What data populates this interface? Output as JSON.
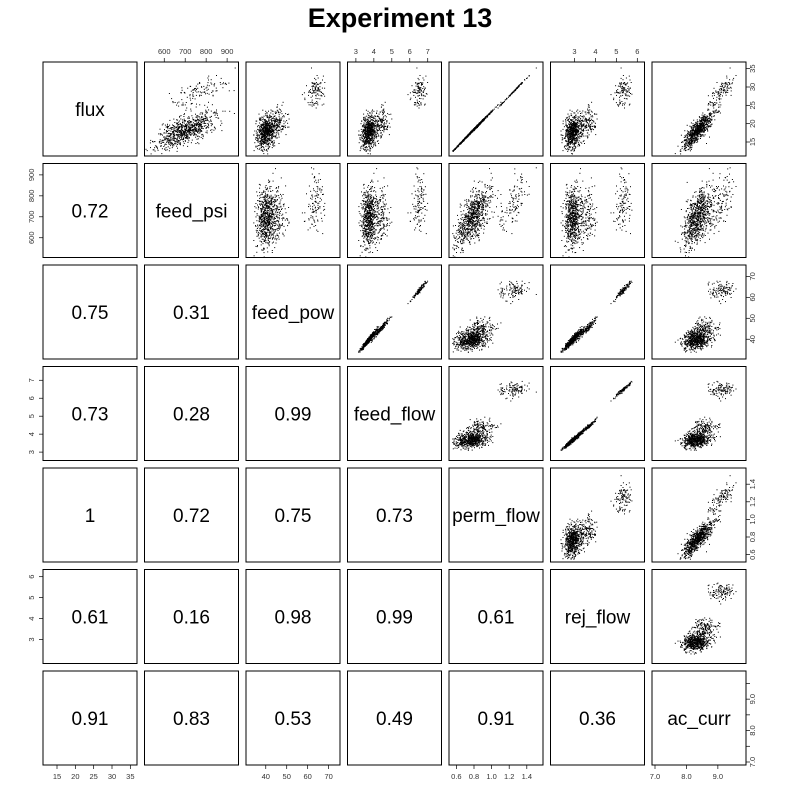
{
  "chart_data": {
    "type": "scatter",
    "title": "Experiment 13",
    "variables": [
      "flux",
      "feed_psi",
      "feed_pow",
      "feed_flow",
      "perm_flow",
      "rej_flow",
      "ac_curr"
    ],
    "ranges": {
      "flux": [
        12,
        36
      ],
      "feed_psi": [
        520,
        940
      ],
      "feed_pow": [
        32,
        74
      ],
      "feed_flow": [
        2.7,
        7.6
      ],
      "perm_flow": [
        0.55,
        1.55
      ],
      "rej_flow": [
        2.0,
        6.2
      ],
      "ac_curr": [
        7.0,
        9.8
      ]
    },
    "ticks": {
      "flux": [
        "15",
        "20",
        "25",
        "30",
        "35"
      ],
      "feed_psi": [
        "600",
        "700",
        "800",
        "900"
      ],
      "feed_pow": [
        "40",
        "50",
        "60",
        "70"
      ],
      "feed_flow": [
        "3",
        "4",
        "5",
        "6",
        "7"
      ],
      "perm_flow": [
        "0.6",
        "0.8",
        "1.0",
        "1.2",
        "1.4"
      ],
      "rej_flow": [
        "3",
        "4",
        "5",
        "6"
      ],
      "ac_curr": [
        "7.0",
        "8.0",
        "9.0"
      ]
    },
    "ticks_minor": {
      "ac_curr": [
        "7.5",
        "8.5",
        "9.5"
      ]
    },
    "correlations": [
      {
        "row": "feed_psi",
        "col": "flux",
        "value": "0.72"
      },
      {
        "row": "feed_pow",
        "col": "flux",
        "value": "0.75"
      },
      {
        "row": "feed_pow",
        "col": "feed_psi",
        "value": "0.31"
      },
      {
        "row": "feed_flow",
        "col": "flux",
        "value": "0.73"
      },
      {
        "row": "feed_flow",
        "col": "feed_psi",
        "value": "0.28"
      },
      {
        "row": "feed_flow",
        "col": "feed_pow",
        "value": "0.99"
      },
      {
        "row": "perm_flow",
        "col": "flux",
        "value": "1"
      },
      {
        "row": "perm_flow",
        "col": "feed_psi",
        "value": "0.72"
      },
      {
        "row": "perm_flow",
        "col": "feed_pow",
        "value": "0.75"
      },
      {
        "row": "perm_flow",
        "col": "feed_flow",
        "value": "0.73"
      },
      {
        "row": "rej_flow",
        "col": "flux",
        "value": "0.61"
      },
      {
        "row": "rej_flow",
        "col": "feed_psi",
        "value": "0.16"
      },
      {
        "row": "rej_flow",
        "col": "feed_pow",
        "value": "0.98"
      },
      {
        "row": "rej_flow",
        "col": "feed_flow",
        "value": "0.99"
      },
      {
        "row": "rej_flow",
        "col": "perm_flow",
        "value": "0.61"
      },
      {
        "row": "ac_curr",
        "col": "flux",
        "value": "0.91"
      },
      {
        "row": "ac_curr",
        "col": "feed_psi",
        "value": "0.83"
      },
      {
        "row": "ac_curr",
        "col": "feed_pow",
        "value": "0.53"
      },
      {
        "row": "ac_curr",
        "col": "feed_flow",
        "value": "0.49"
      },
      {
        "row": "ac_curr",
        "col": "perm_flow",
        "value": "0.91"
      },
      {
        "row": "ac_curr",
        "col": "rej_flow",
        "value": "0.36"
      }
    ],
    "clusters": [
      {
        "flux": 18,
        "feed_psi": 700,
        "feed_pow": 40,
        "feed_flow": 3.7,
        "perm_flow": 0.77,
        "rej_flow": 2.9,
        "ac_curr": 8.3
      },
      {
        "flux": 20.5,
        "feed_psi": 710,
        "feed_pow": 45.5,
        "feed_flow": 4.4,
        "perm_flow": 0.88,
        "rej_flow": 3.6,
        "ac_curr": 8.6
      },
      {
        "flux": 29,
        "feed_psi": 770,
        "feed_pow": 63.5,
        "feed_flow": 6.5,
        "perm_flow": 1.25,
        "rej_flow": 5.3,
        "ac_curr": 9.1
      }
    ],
    "grid": false,
    "legend": "none"
  }
}
